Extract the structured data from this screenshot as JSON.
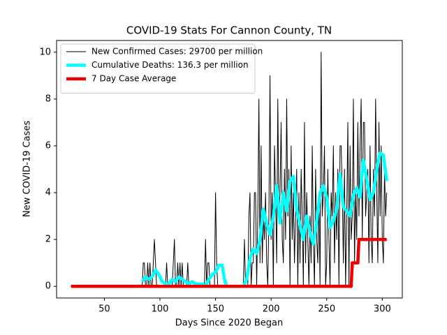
{
  "chart_data": {
    "type": "line",
    "title": "COVID-19 Stats For Cannon County, TN",
    "x_label": "Days Since 2020 Began",
    "y_label": "New COVID-19 Cases",
    "xlim": [
      7,
      318
    ],
    "ylim": [
      -0.5,
      10.5
    ],
    "xticks": [
      50,
      100,
      150,
      200,
      250,
      300
    ],
    "yticks": [
      0,
      2,
      4,
      6,
      8,
      10
    ],
    "legend": "upper left",
    "series": [
      {
        "name": "New Confirmed Cases: 29700 per million",
        "color": "#000000",
        "width": 1,
        "x": [
          20,
          84,
          85,
          86,
          87,
          88,
          89,
          90,
          91,
          92,
          93,
          94,
          95,
          96,
          97,
          98,
          99,
          100,
          101,
          102,
          103,
          104,
          105,
          106,
          107,
          108,
          109,
          110,
          111,
          112,
          113,
          114,
          115,
          116,
          117,
          118,
          119,
          120,
          121,
          122,
          123,
          124,
          125,
          126,
          127,
          128,
          129,
          130,
          131,
          132,
          133,
          134,
          135,
          136,
          137,
          138,
          139,
          140,
          141,
          142,
          143,
          144,
          145,
          146,
          147,
          148,
          149,
          150,
          151,
          152,
          153,
          154,
          155,
          156,
          157,
          158,
          159,
          160,
          161,
          162,
          163,
          164,
          165,
          166,
          167,
          168,
          169,
          170,
          171,
          172,
          173,
          174,
          175,
          176,
          177,
          178,
          179,
          180,
          181,
          182,
          183,
          184,
          185,
          186,
          187,
          188,
          189,
          190,
          191,
          192,
          193,
          194,
          195,
          196,
          197,
          198,
          199,
          200,
          201,
          202,
          203,
          204,
          205,
          206,
          207,
          208,
          209,
          210,
          211,
          212,
          213,
          214,
          215,
          216,
          217,
          218,
          219,
          220,
          221,
          222,
          223,
          224,
          225,
          226,
          227,
          228,
          229,
          230,
          231,
          232,
          233,
          234,
          235,
          236,
          237,
          238,
          239,
          240,
          241,
          242,
          243,
          244,
          245,
          246,
          247,
          248,
          249,
          250,
          251,
          252,
          253,
          254,
          255,
          256,
          257,
          258,
          259,
          260,
          261,
          262,
          263,
          264,
          265,
          266,
          267,
          268,
          269,
          270,
          271,
          272,
          273,
          274,
          275,
          276,
          277,
          278,
          279,
          280,
          281,
          282,
          283,
          284,
          285,
          286,
          287,
          288,
          289,
          290,
          291,
          292,
          293,
          294,
          295,
          296,
          297,
          298,
          299,
          300,
          301,
          302,
          303,
          304
        ],
        "values": [
          0,
          0,
          1,
          1,
          0,
          0,
          1,
          0,
          1,
          0,
          0,
          1,
          2,
          1,
          0,
          0,
          0,
          0,
          0,
          0,
          0,
          0,
          0,
          1,
          0,
          0,
          0,
          0,
          0,
          1,
          2,
          0,
          0,
          1,
          0,
          1,
          0,
          1,
          0,
          0,
          0,
          0,
          1,
          0,
          0,
          0,
          0,
          0,
          0,
          0,
          0,
          0,
          0,
          0,
          0,
          0,
          0,
          0,
          2,
          0,
          1,
          1,
          0,
          0,
          0,
          0,
          0,
          4,
          1,
          0,
          0,
          0,
          0,
          0,
          0,
          0,
          0,
          0,
          0,
          0,
          0,
          0,
          0,
          0,
          0,
          0,
          0,
          0,
          0,
          0,
          0,
          0,
          0,
          2,
          0,
          0,
          0,
          3,
          4,
          0,
          1,
          1,
          4,
          4,
          0,
          3,
          8,
          1,
          6,
          1,
          3,
          2,
          4,
          1,
          0,
          3,
          9,
          2,
          4,
          0,
          6,
          4,
          1,
          8,
          3,
          4,
          7,
          2,
          1,
          5,
          2,
          8,
          3,
          5,
          0,
          6,
          2,
          4,
          1,
          3,
          5,
          0,
          4,
          1,
          5,
          3,
          0,
          7,
          1,
          4,
          2,
          0,
          3,
          1,
          6,
          2,
          0,
          5,
          2,
          1,
          4,
          0,
          10,
          3,
          4,
          6,
          0,
          1,
          5,
          2,
          0,
          4,
          3,
          6,
          1,
          4,
          2,
          5,
          0,
          6,
          6,
          4,
          1,
          5,
          0,
          3,
          7,
          0,
          6,
          2,
          3,
          8,
          1,
          4,
          2,
          7,
          3,
          6,
          8,
          2,
          7,
          7,
          3,
          4,
          5,
          1,
          6,
          2,
          1,
          5,
          3,
          8,
          4,
          1,
          7,
          3,
          6,
          2,
          1,
          5,
          3,
          4
        ]
      },
      {
        "name": "Cumulative Deaths: 136.3 per million",
        "color": "#00ffff",
        "width": 4.5,
        "x": [
          84,
          87,
          90,
          93,
          96,
          99,
          102,
          105,
          108,
          111,
          114,
          117,
          120,
          123,
          126,
          129,
          132,
          135,
          138,
          141,
          144,
          147,
          150,
          153,
          156,
          158,
          160,
          175,
          178,
          181,
          184,
          187,
          190,
          193,
          196,
          199,
          202,
          205,
          208,
          211,
          214,
          217,
          220,
          223,
          226,
          229,
          232,
          235,
          238,
          241,
          244,
          247,
          250,
          253,
          256,
          259,
          262,
          265,
          268,
          271,
          274,
          277,
          280,
          283,
          286,
          289,
          292,
          295,
          298,
          301,
          304
        ],
        "values": [
          0.2,
          0.4,
          0.3,
          0.4,
          0.7,
          0.5,
          0.2,
          0.1,
          0.1,
          0.3,
          0.2,
          0.4,
          0.3,
          0.2,
          0.1,
          0.2,
          0.1,
          0.1,
          0.1,
          0,
          0.3,
          0.5,
          0.6,
          0.9,
          0.9,
          0.3,
          0,
          0,
          0.3,
          1.2,
          1.6,
          1.4,
          2.0,
          3.3,
          2.7,
          2.2,
          3.0,
          4.3,
          2.7,
          4.0,
          3.2,
          4.5,
          4.7,
          3.3,
          2.6,
          2.0,
          3.0,
          2.3,
          1.8,
          2.8,
          4.0,
          4.3,
          3.8,
          2.5,
          2.8,
          3.3,
          4.8,
          3.4,
          3.2,
          3.0,
          3.9,
          4.2,
          3.8,
          5.4,
          4.6,
          3.7,
          4.0,
          5.0,
          5.7,
          5.6,
          4.5
        ]
      },
      {
        "name": "7 Day Case Average",
        "color": "#ee0000",
        "width": 4.5,
        "x": [
          20,
          272,
          273,
          278,
          279,
          304
        ],
        "values": [
          0,
          0,
          1,
          1,
          2,
          2
        ]
      }
    ]
  }
}
